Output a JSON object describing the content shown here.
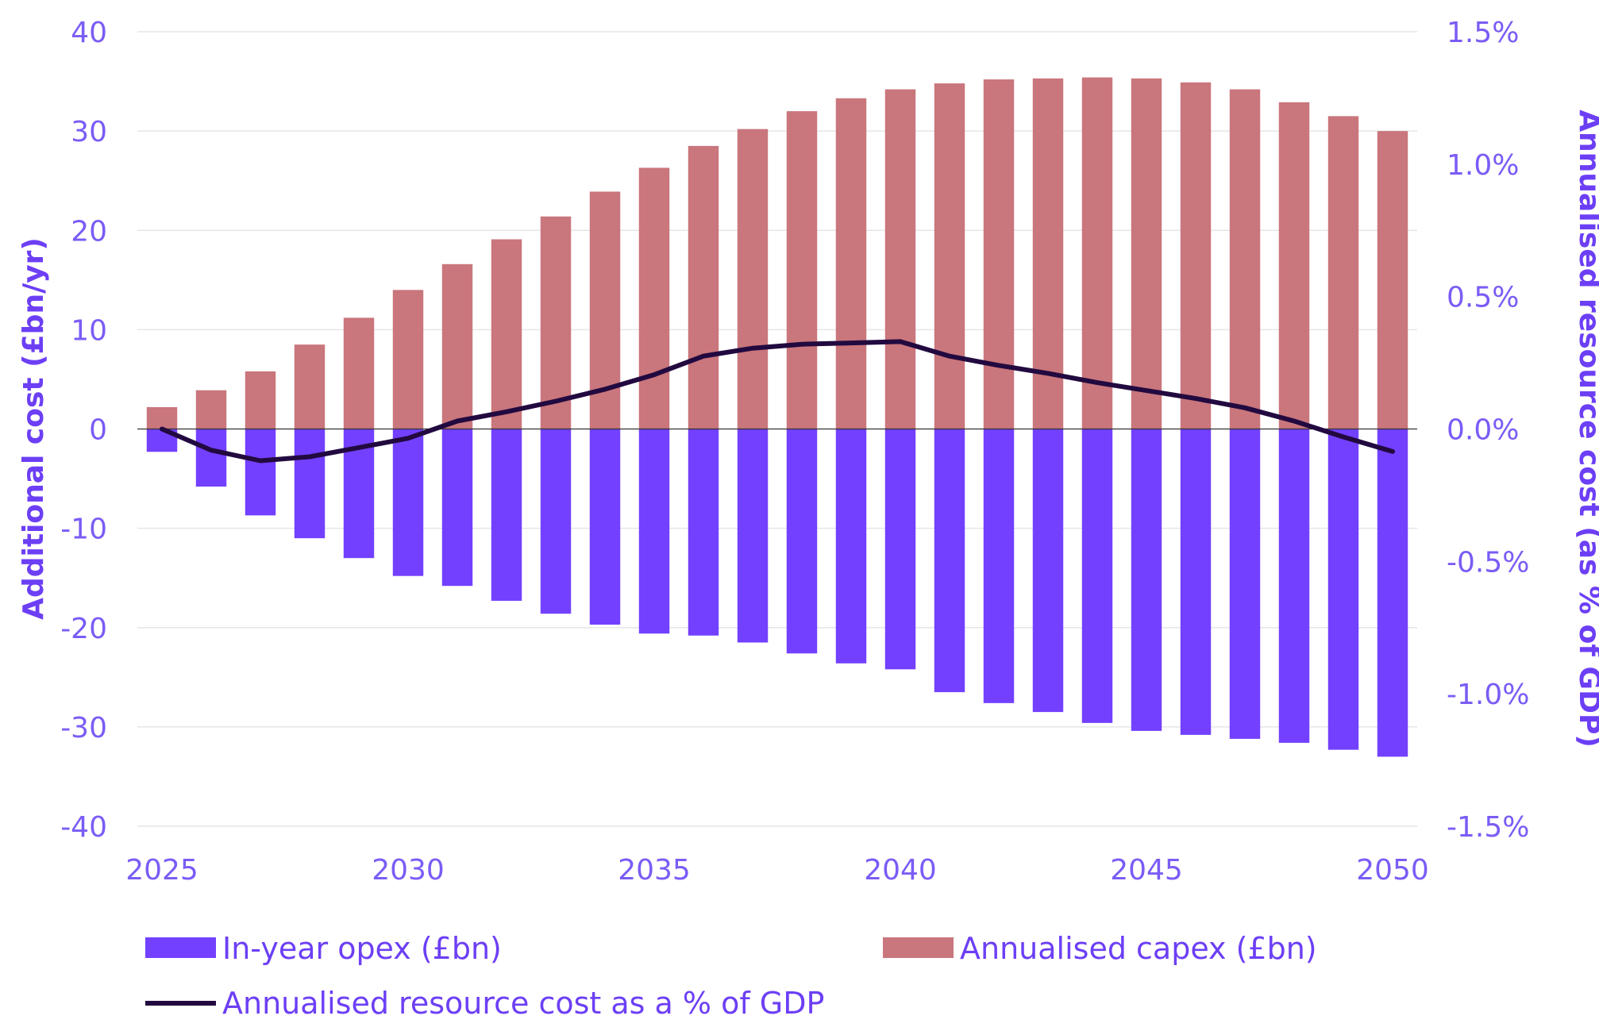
{
  "chart_data": {
    "type": "bar",
    "title": "",
    "x": [
      2025,
      2026,
      2027,
      2028,
      2029,
      2030,
      2031,
      2032,
      2033,
      2034,
      2035,
      2036,
      2037,
      2038,
      2039,
      2040,
      2041,
      2042,
      2043,
      2044,
      2045,
      2046,
      2047,
      2048,
      2049,
      2050
    ],
    "x_tick_labels": [
      "2025",
      "2030",
      "2035",
      "2040",
      "2045",
      "2050"
    ],
    "ylabel": "Additional cost (£bn/yr)",
    "ylim": [
      -40,
      40
    ],
    "y_tick_labels": [
      "40",
      "30",
      "20",
      "10",
      "0",
      "-10",
      "-20",
      "-30",
      "-40"
    ],
    "y2label": "Annualised resource cost (as % of GDP)",
    "y2lim": [
      -1.5,
      1.5
    ],
    "y2_tick_labels": [
      "1.5%",
      "1.0%",
      "0.5%",
      "0.0%",
      "-0.5%",
      "-1.0%",
      "-1.5%"
    ],
    "grid": true,
    "legend_position": "bottom",
    "series": [
      {
        "name": "In-year opex (£bn)",
        "type": "bar",
        "axis": "left",
        "color": "#7340ff",
        "values": [
          -2.3,
          -5.8,
          -8.7,
          -11.0,
          -13.0,
          -14.8,
          -15.8,
          -17.3,
          -18.6,
          -19.7,
          -20.6,
          -20.8,
          -21.5,
          -22.6,
          -23.6,
          -24.2,
          -26.5,
          -27.6,
          -28.5,
          -29.6,
          -30.4,
          -30.8,
          -31.2,
          -31.6,
          -32.3,
          -33.0
        ]
      },
      {
        "name": "Annualised capex (£bn)",
        "type": "bar",
        "axis": "left",
        "color": "#c9767c",
        "values": [
          2.2,
          3.9,
          5.8,
          8.5,
          11.2,
          14.0,
          16.6,
          19.1,
          21.4,
          23.9,
          26.3,
          28.5,
          30.2,
          32.0,
          33.3,
          34.2,
          34.8,
          35.2,
          35.3,
          35.4,
          35.3,
          34.9,
          34.2,
          32.9,
          31.5,
          30.0
        ]
      },
      {
        "name": "Annualised resource cost as a % of GDP",
        "type": "line",
        "axis": "right",
        "color": "#220a40",
        "values": [
          0.0,
          -0.08,
          -0.12,
          -0.105,
          -0.07,
          -0.035,
          0.03,
          0.065,
          0.105,
          0.15,
          0.205,
          0.275,
          0.305,
          0.32,
          0.325,
          0.33,
          0.275,
          0.24,
          0.21,
          0.175,
          0.145,
          0.115,
          0.08,
          0.03,
          -0.03,
          -0.085
        ]
      }
    ]
  }
}
